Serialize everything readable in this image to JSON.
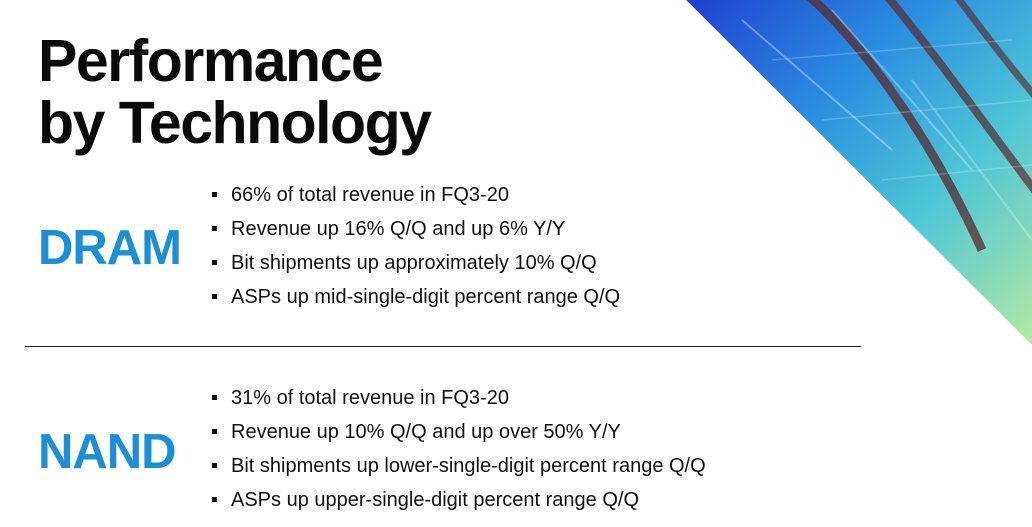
{
  "slide": {
    "title_lines": [
      "Performance",
      "by Technology"
    ],
    "accent_color": "#1a8fd8",
    "sections": [
      {
        "label": "DRAM",
        "bullets": [
          "66% of total revenue in FQ3-20",
          "Revenue up 16% Q/Q and up 6% Y/Y",
          "Bit shipments up approximately 10% Q/Q",
          "ASPs up mid-single-digit percent range Q/Q"
        ]
      },
      {
        "label": "NAND",
        "bullets": [
          "31% of total revenue in FQ3-20",
          "Revenue up 10% Q/Q and up over 50% Y/Y",
          "Bit shipments up lower-single-digit percent range Q/Q",
          "ASPs up upper-single-digit percent range Q/Q"
        ]
      }
    ],
    "decoration": {
      "icon": "wafer-gradient-corner-graphic",
      "gradient_colors": [
        "#1f4fd6",
        "#2ba9e6",
        "#5fd0c8",
        "#a8e6a6"
      ]
    }
  }
}
